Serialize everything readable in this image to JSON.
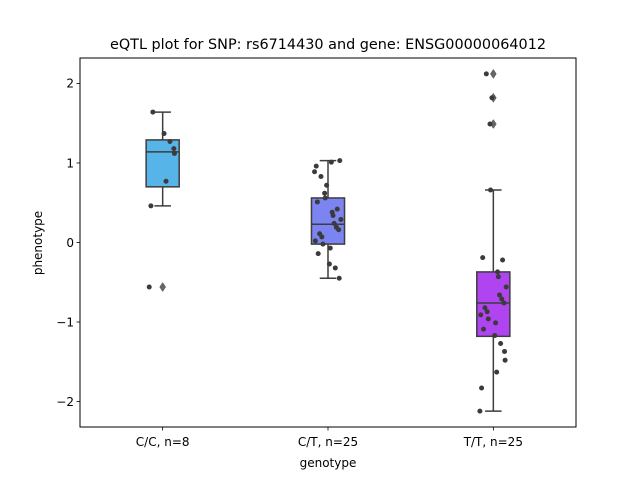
{
  "chart_data": {
    "type": "box",
    "title": "eQTL plot for SNP: rs6714430 and gene: ENSG00000064012",
    "xlabel": "genotype",
    "ylabel": "phenotype",
    "ylim": [
      -2.32,
      2.32
    ],
    "yticks": [
      -2,
      -1,
      0,
      1,
      2
    ],
    "ytick_labels": [
      "−2",
      "−1",
      "0",
      "1",
      "2"
    ],
    "categories": [
      "C/C, n=8",
      "C/T, n=25",
      "T/T, n=25"
    ],
    "colors": [
      "#56b4e9",
      "#7b84f0",
      "#b044f0"
    ],
    "series": [
      {
        "box": {
          "q1": 0.7,
          "median": 1.14,
          "q3": 1.29,
          "whisker_low": 0.46,
          "whisker_high": 1.64
        },
        "outliers": [
          -0.56
        ],
        "points": [
          1.64,
          1.37,
          1.27,
          1.18,
          1.12,
          0.77,
          0.46,
          -0.56
        ]
      },
      {
        "box": {
          "q1": -0.02,
          "median": 0.23,
          "q3": 0.56,
          "whisker_low": -0.45,
          "whisker_high": 1.03
        },
        "outliers": [],
        "points": [
          1.03,
          1.01,
          0.96,
          0.89,
          0.83,
          0.72,
          0.62,
          0.56,
          0.51,
          0.42,
          0.38,
          0.34,
          0.29,
          0.24,
          0.19,
          0.16,
          0.11,
          0.07,
          0.02,
          -0.02,
          -0.07,
          -0.14,
          -0.27,
          -0.32,
          -0.45
        ]
      },
      {
        "box": {
          "q1": -1.18,
          "median": -0.76,
          "q3": -0.37,
          "whisker_low": -2.12,
          "whisker_high": 0.66
        },
        "outliers": [
          2.12,
          1.82,
          1.49
        ],
        "points": [
          2.12,
          1.82,
          1.49,
          0.66,
          -0.19,
          -0.22,
          -0.37,
          -0.43,
          -0.56,
          -0.66,
          -0.71,
          -0.76,
          -0.82,
          -0.87,
          -0.91,
          -0.96,
          -1.01,
          -1.09,
          -1.17,
          -1.27,
          -1.37,
          -1.48,
          -1.63,
          -1.83,
          -2.12
        ]
      }
    ]
  }
}
